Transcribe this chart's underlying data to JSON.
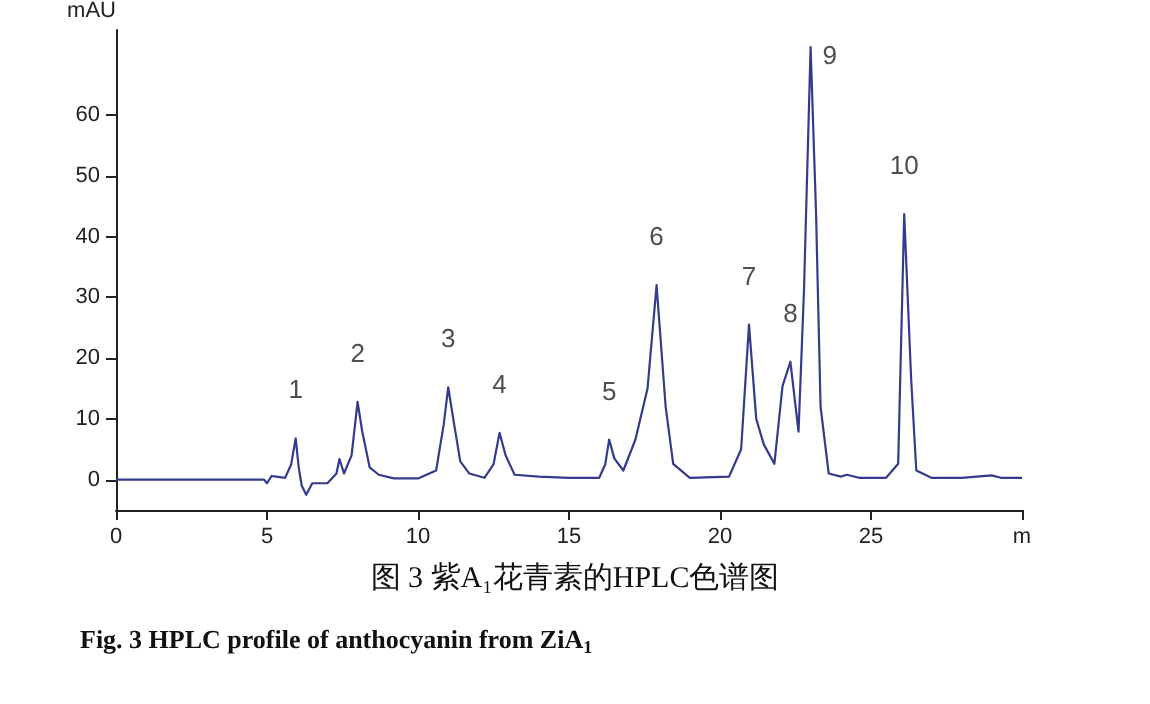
{
  "chart_data": {
    "type": "line",
    "title": "图 3 紫A₁花青素的HPLC色谱图",
    "subtitle": "Fig. 3 HPLC profile of anthocyanin from ZiA$_{1}$",
    "ylabel": "mAU",
    "x": [
      0,
      4.9,
      5.0,
      5.15,
      5.3,
      5.6,
      5.8,
      5.95,
      6.05,
      6.15,
      6.3,
      6.5,
      7.0,
      7.3,
      7.4,
      7.55,
      7.8,
      8.0,
      8.15,
      8.4,
      8.7,
      9.2,
      10.0,
      10.6,
      10.85,
      11.0,
      11.2,
      11.4,
      11.7,
      12.2,
      12.5,
      12.7,
      12.9,
      13.2,
      14.0,
      15.0,
      16.0,
      16.2,
      16.33,
      16.5,
      16.8,
      17.2,
      17.6,
      17.9,
      18.2,
      18.45,
      19.0,
      20.3,
      20.7,
      20.96,
      21.2,
      21.45,
      21.8,
      22.07,
      22.33,
      22.6,
      22.78,
      23.0,
      23.18,
      23.33,
      23.6,
      24.0,
      24.2,
      24.6,
      25.5,
      25.9,
      26.1,
      26.33,
      26.5,
      27.0,
      28.0,
      29.0,
      29.3,
      30.0
    ],
    "series": [
      {
        "color": "#353b8c",
        "values": [
          0,
          0,
          -0.6,
          0.6,
          0.5,
          0.3,
          2.5,
          6.8,
          2,
          -1,
          -2.5,
          -0.6,
          -0.6,
          1,
          3.4,
          1,
          4,
          12.8,
          8,
          2,
          0.8,
          0.2,
          0.2,
          1.5,
          9,
          15.2,
          9,
          3,
          1,
          0.3,
          2.5,
          7.7,
          4,
          0.8,
          0.5,
          0.3,
          0.3,
          2.5,
          6.6,
          3.5,
          1.5,
          6.6,
          15,
          32,
          12,
          2.6,
          0.3,
          0.5,
          5,
          25.5,
          10,
          5.8,
          2.6,
          15.4,
          19.4,
          7.9,
          31,
          71.2,
          44,
          12,
          1,
          0.5,
          0.8,
          0.3,
          0.3,
          2.6,
          43.7,
          16.5,
          1.5,
          0.3,
          0.3,
          0.7,
          0.3,
          0.3
        ]
      }
    ],
    "xlim": [
      0,
      30
    ],
    "xticks": [
      0,
      5,
      10,
      15,
      20,
      25,
      {
        "value": 30,
        "label": "m"
      }
    ],
    "ylim": [
      -5,
      74
    ],
    "yticks": [
      0,
      10,
      20,
      30,
      40,
      50,
      60
    ],
    "grid": false,
    "annotations": [
      {
        "text": "1",
        "x": 5.95,
        "y": 6.8
      },
      {
        "text": "2",
        "x": 8.0,
        "y": 12.8
      },
      {
        "text": "3",
        "x": 11.0,
        "y": 15.2
      },
      {
        "text": "4",
        "x": 12.7,
        "y": 7.7
      },
      {
        "text": "5",
        "x": 16.33,
        "y": 6.6
      },
      {
        "text": "6",
        "x": 17.9,
        "y": 32
      },
      {
        "text": "7",
        "x": 20.96,
        "y": 25.5
      },
      {
        "text": "8",
        "x": 22.33,
        "y": 19.4
      },
      {
        "text": "9",
        "x": 23.0,
        "y": 71.2
      },
      {
        "text": "10",
        "x": 26.1,
        "y": 43.7
      }
    ]
  }
}
